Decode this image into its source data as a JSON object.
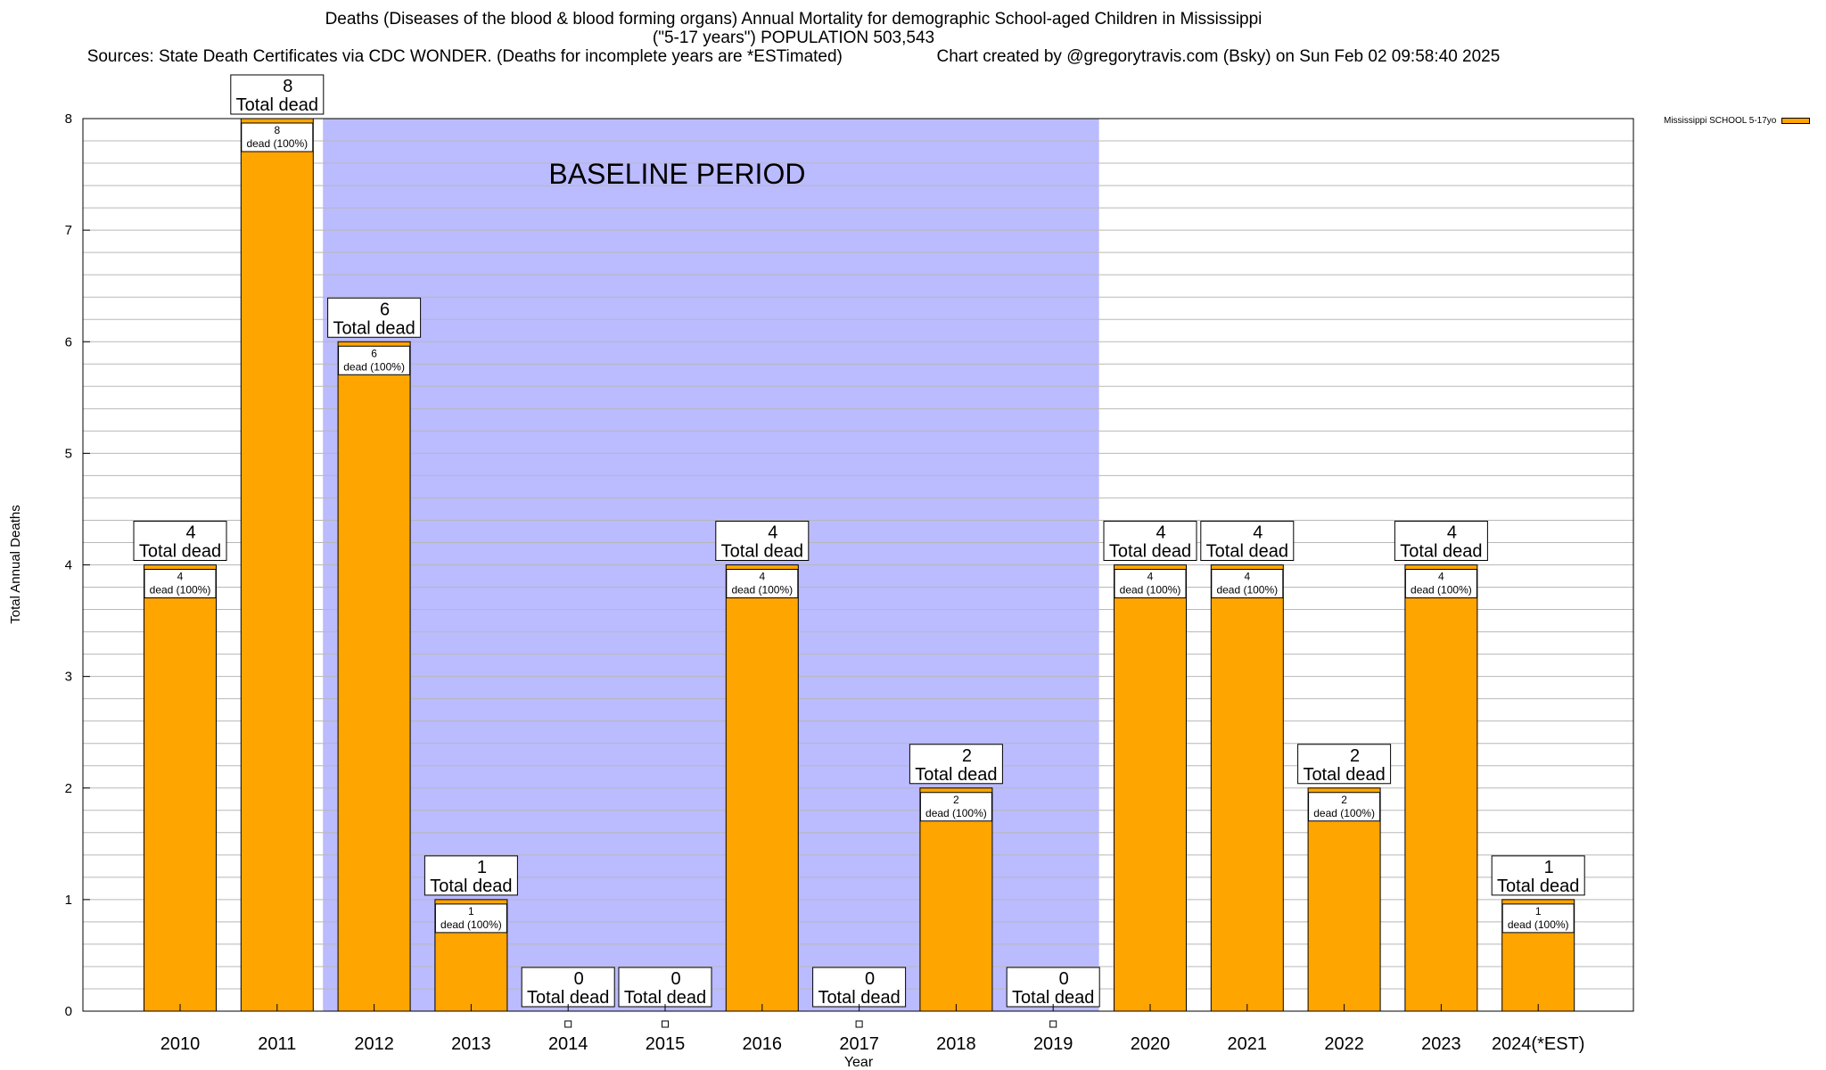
{
  "chart_data": {
    "type": "bar",
    "title": "Deaths (Diseases of the blood & blood forming organs) Annual Mortality for demographic School-aged Children in Mississippi",
    "subtitle": "(\"5-17 years\") POPULATION 503,543",
    "sources": "Sources: State Death Certificates via CDC WONDER. (Deaths for incomplete years are *ESTimated)",
    "credit": "Chart created by @gregorytravis.com (Bsky) on Sun Feb 02 09:58:40 2025",
    "xlabel": "Year",
    "ylabel": "Total Annual Deaths",
    "ylim": [
      0,
      8
    ],
    "yticks": [
      0,
      1,
      2,
      3,
      4,
      5,
      6,
      7,
      8
    ],
    "grid": true,
    "legend_position": "top-right",
    "categories": [
      "2010",
      "2011",
      "2012",
      "2013",
      "2014",
      "2015",
      "2016",
      "2017",
      "2018",
      "2019",
      "2020",
      "2021",
      "2022",
      "2023",
      "2024(*EST)"
    ],
    "series": [
      {
        "name": "Mississippi SCHOOL 5-17yo",
        "color": "#FFA500",
        "values": [
          4,
          8,
          6,
          1,
          0,
          0,
          4,
          0,
          2,
          0,
          4,
          4,
          2,
          4,
          1
        ]
      }
    ],
    "top_label_text": "Total dead",
    "inner_label_text": "dead (100%)",
    "baseline_region": {
      "label": "BASELINE PERIOD",
      "from": "2012",
      "to": "2019",
      "color": "#BBBBFF"
    }
  }
}
